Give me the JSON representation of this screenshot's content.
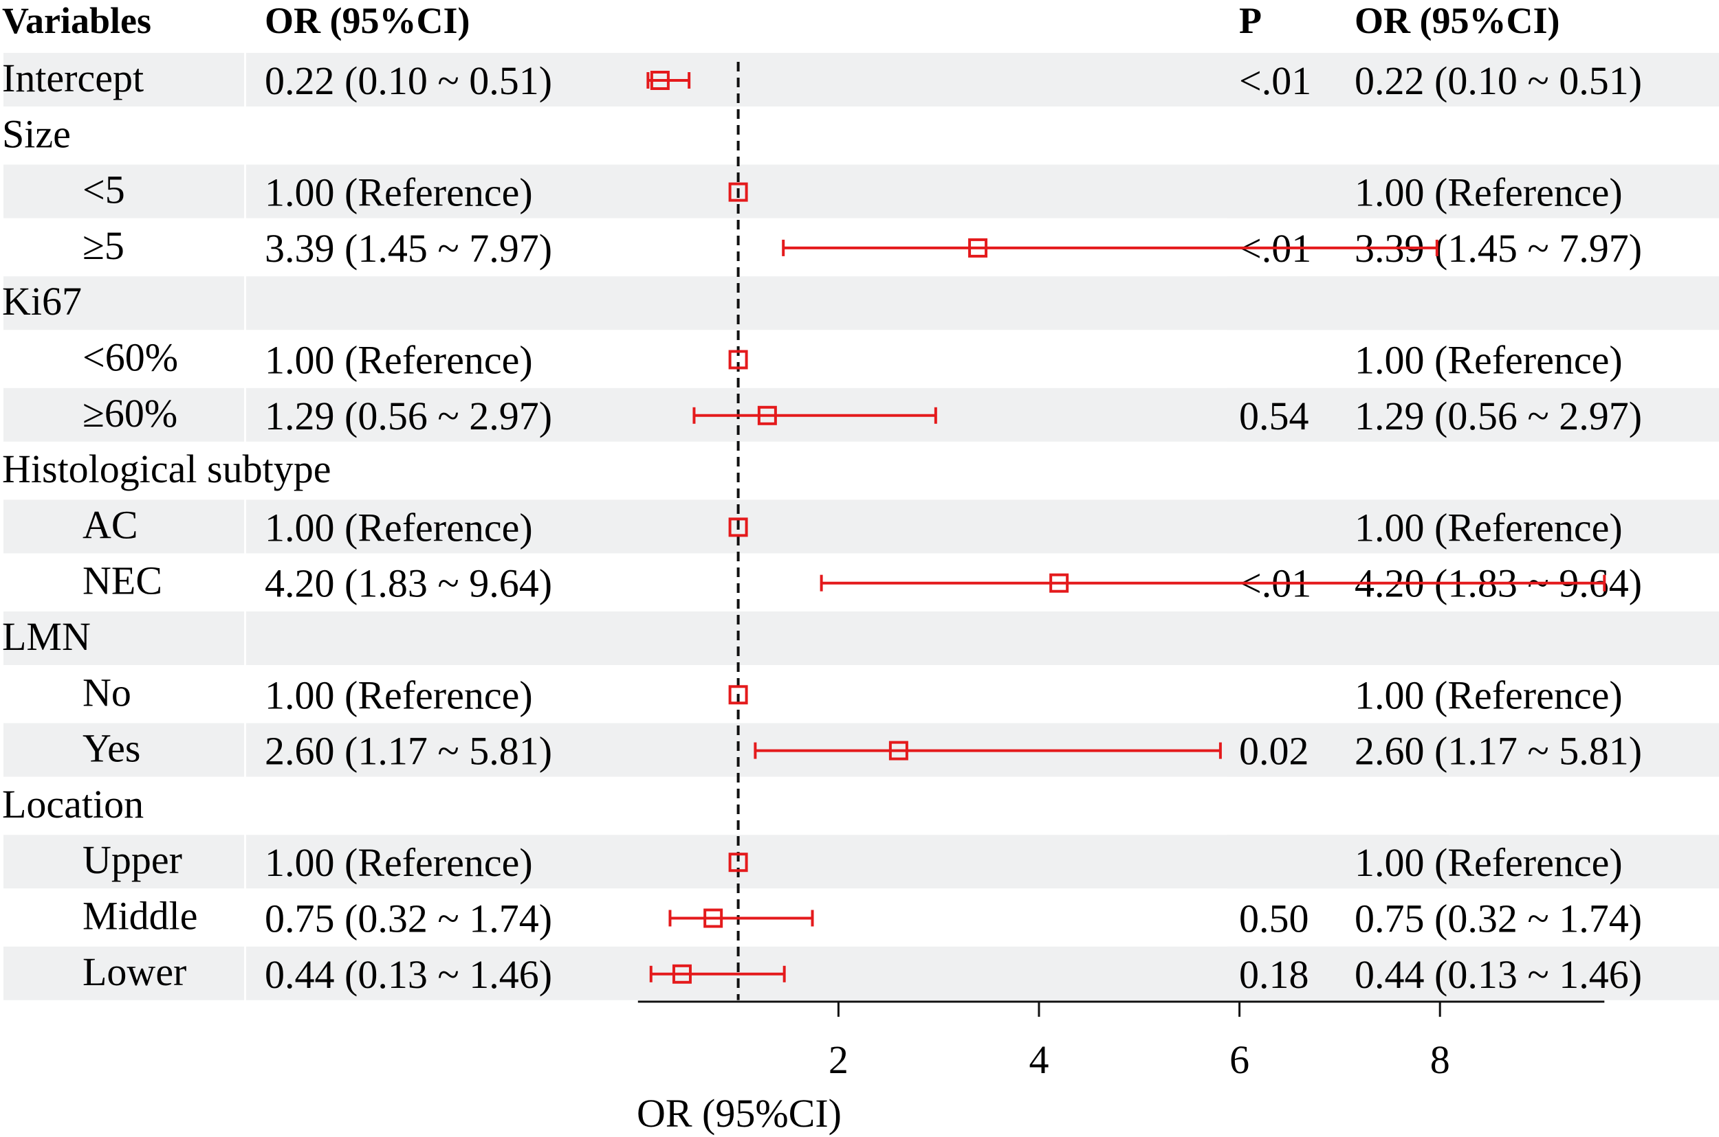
{
  "chart_data": {
    "type": "forest",
    "headers": {
      "variables": "Variables",
      "or_left": "OR (95%CI)",
      "p": "P",
      "or_right": "OR (95%CI)"
    },
    "xlabel": "OR (95%CI)",
    "xticks": [
      2,
      4,
      6,
      8
    ],
    "xlim": [
      0,
      9.64
    ],
    "reference_line": 1,
    "marker_color": "#e41a1c",
    "shade_color": "#eff0f1",
    "rows": [
      {
        "label": "Intercept",
        "indent": false,
        "or_text": "0.22 (0.10 ~ 0.51)",
        "p": "<.01",
        "or": 0.22,
        "lo": 0.1,
        "hi": 0.51
      },
      {
        "label": "Size",
        "indent": false,
        "or_text": "",
        "p": "",
        "or": null,
        "lo": null,
        "hi": null
      },
      {
        "label": "<5",
        "indent": true,
        "or_text": "1.00 (Reference)",
        "p": "",
        "or": 1.0,
        "lo": 1.0,
        "hi": 1.0
      },
      {
        "label": "≥5",
        "indent": true,
        "or_text": "3.39 (1.45 ~ 7.97)",
        "p": "<.01",
        "or": 3.39,
        "lo": 1.45,
        "hi": 7.97
      },
      {
        "label": "Ki67",
        "indent": false,
        "or_text": "",
        "p": "",
        "or": null,
        "lo": null,
        "hi": null
      },
      {
        "label": "<60%",
        "indent": true,
        "or_text": "1.00 (Reference)",
        "p": "",
        "or": 1.0,
        "lo": 1.0,
        "hi": 1.0
      },
      {
        "label": "≥60%",
        "indent": true,
        "or_text": "1.29 (0.56 ~ 2.97)",
        "p": "0.54",
        "or": 1.29,
        "lo": 0.56,
        "hi": 2.97
      },
      {
        "label": "Histological subtype",
        "indent": false,
        "or_text": "",
        "p": "",
        "or": null,
        "lo": null,
        "hi": null
      },
      {
        "label": "AC",
        "indent": true,
        "or_text": "1.00 (Reference)",
        "p": "",
        "or": 1.0,
        "lo": 1.0,
        "hi": 1.0
      },
      {
        "label": "NEC",
        "indent": true,
        "or_text": "4.20 (1.83 ~ 9.64)",
        "p": "<.01",
        "or": 4.2,
        "lo": 1.83,
        "hi": 9.64
      },
      {
        "label": "LMN",
        "indent": false,
        "or_text": "",
        "p": "",
        "or": null,
        "lo": null,
        "hi": null
      },
      {
        "label": "No",
        "indent": true,
        "or_text": "1.00 (Reference)",
        "p": "",
        "or": 1.0,
        "lo": 1.0,
        "hi": 1.0
      },
      {
        "label": "Yes",
        "indent": true,
        "or_text": "2.60 (1.17 ~ 5.81)",
        "p": "0.02",
        "or": 2.6,
        "lo": 1.17,
        "hi": 5.81
      },
      {
        "label": "Location",
        "indent": false,
        "or_text": "",
        "p": "",
        "or": null,
        "lo": null,
        "hi": null
      },
      {
        "label": "Upper",
        "indent": true,
        "or_text": "1.00 (Reference)",
        "p": "",
        "or": 1.0,
        "lo": 1.0,
        "hi": 1.0
      },
      {
        "label": "Middle",
        "indent": true,
        "or_text": "0.75 (0.32 ~ 1.74)",
        "p": "0.50",
        "or": 0.75,
        "lo": 0.32,
        "hi": 1.74
      },
      {
        "label": "Lower",
        "indent": true,
        "or_text": "0.44 (0.13 ~ 1.46)",
        "p": "0.18",
        "or": 0.44,
        "lo": 0.13,
        "hi": 1.46
      }
    ]
  }
}
